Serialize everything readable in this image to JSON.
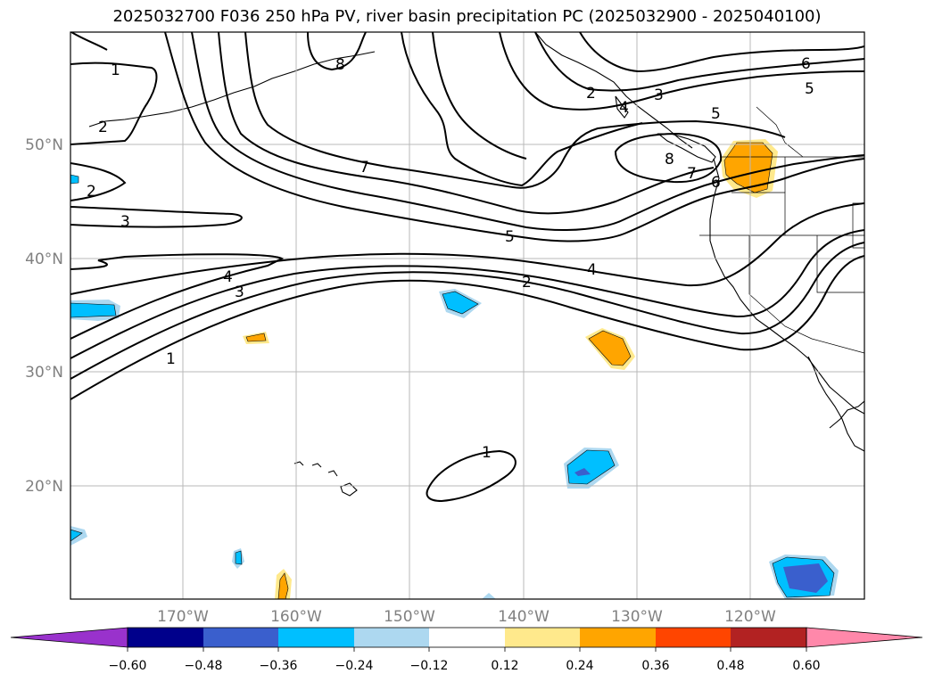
{
  "title": "2025032700 F036 250 hPa PV, river basin precipitation PC (2025032900 - 2025040100)",
  "map": {
    "lon_labels": [
      "170°W",
      "160°W",
      "150°W",
      "140°W",
      "130°W",
      "120°W"
    ],
    "lat_labels": [
      "50°N",
      "40°N",
      "30°N",
      "20°N"
    ],
    "gridlines": true,
    "tick_label_color": "#808080"
  },
  "contours": {
    "variable": "250 hPa PV",
    "line_color": "#000000",
    "labels": [
      "1",
      "2",
      "2",
      "3",
      "4",
      "3",
      "1",
      "7",
      "5",
      "4",
      "2",
      "1",
      "6",
      "5",
      "5",
      "2",
      "3",
      "4",
      "8",
      "8",
      "7",
      "6"
    ]
  },
  "colorbar": {
    "ticks": [
      "−0.60",
      "−0.48",
      "−0.36",
      "−0.24",
      "−0.12",
      "0.12",
      "0.24",
      "0.36",
      "0.48",
      "0.60"
    ],
    "colors": [
      "#9932cc",
      "#00008b",
      "#3a5fcd",
      "#00bfff",
      "#add8f0",
      "#ffffff",
      "#ffe98c",
      "#ffa500",
      "#ff4500",
      "#b22222",
      "#ff88aa"
    ],
    "extend": "both"
  }
}
